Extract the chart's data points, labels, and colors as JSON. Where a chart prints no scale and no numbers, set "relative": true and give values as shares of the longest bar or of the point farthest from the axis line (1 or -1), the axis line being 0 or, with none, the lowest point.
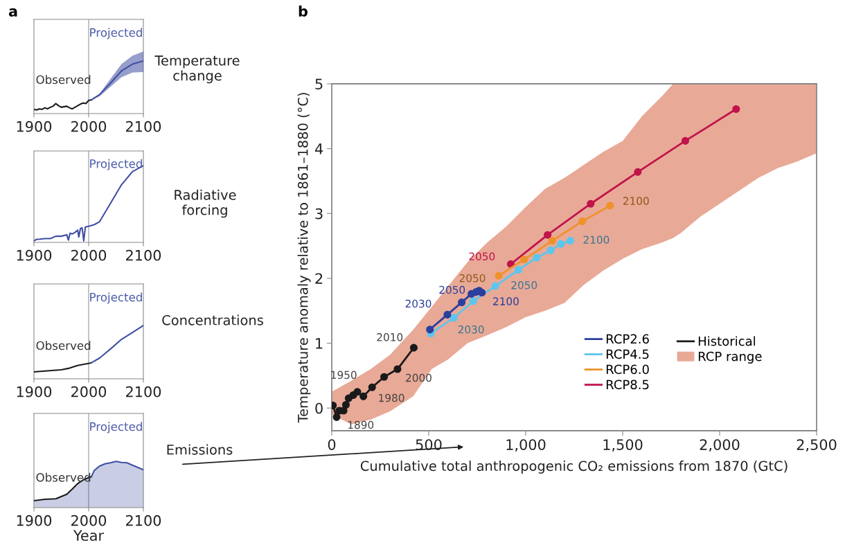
{
  "chart_data": [
    {
      "type": "line",
      "relative": true,
      "xlim": [
        1900,
        2100
      ],
      "xticks": [
        1900,
        2000,
        2100
      ],
      "annotations": [
        "a",
        "Temperature\nchange",
        "Observed",
        "Projected"
      ],
      "ref_lines": [
        {
          "axis": "x",
          "value": 2000,
          "color": "#aaaaaa"
        }
      ],
      "series": [
        {
          "color": "#1a1a1a",
          "x": [
            1900,
            1905,
            1910,
            1915,
            1920,
            1925,
            1930,
            1935,
            1940,
            1945,
            1950,
            1955,
            1960,
            1965,
            1970,
            1975,
            1980,
            1985,
            1990,
            1995,
            2000,
            2005
          ],
          "values": [
            0.08,
            0.07,
            0.09,
            0.08,
            0.11,
            0.09,
            0.12,
            0.14,
            0.19,
            0.15,
            0.12,
            0.13,
            0.14,
            0.11,
            0.09,
            0.12,
            0.15,
            0.18,
            0.2,
            0.19,
            0.25,
            0.26
          ]
        },
        {
          "color": "#3f4fa3",
          "x": [
            2005,
            2020,
            2040,
            2060,
            2080,
            2100
          ],
          "values": [
            0.26,
            0.36,
            0.58,
            0.81,
            0.94,
            1.0
          ],
          "lower": [
            0.26,
            0.33,
            0.51,
            0.69,
            0.78,
            0.79
          ],
          "upper": [
            0.26,
            0.38,
            0.66,
            0.94,
            1.1,
            1.18
          ]
        }
      ]
    },
    {
      "type": "line",
      "relative": true,
      "xlim": [
        1900,
        2100
      ],
      "xticks": [
        1900,
        2000,
        2100
      ],
      "annotations": [
        "Radiative\nforcing",
        "Projected"
      ],
      "ref_lines": [
        {
          "axis": "x",
          "value": 2000,
          "color": "#aaaaaa"
        }
      ],
      "series": [
        {
          "color": "#3f4fa3",
          "x": [
            1900,
            1905,
            1910,
            1920,
            1930,
            1940,
            1950,
            1960,
            1963,
            1966,
            1970,
            1975,
            1980,
            1982,
            1985,
            1988,
            1991,
            1994,
            2000,
            2010,
            2020,
            2040,
            2060,
            2080,
            2100
          ],
          "values": [
            0.02,
            0.04,
            0.04,
            0.05,
            0.05,
            0.08,
            0.08,
            0.1,
            0.03,
            0.12,
            0.11,
            0.13,
            0.16,
            0.07,
            0.18,
            0.19,
            0.02,
            0.2,
            0.21,
            0.23,
            0.27,
            0.51,
            0.75,
            0.92,
            1.0
          ]
        }
      ]
    },
    {
      "type": "line",
      "relative": true,
      "xlim": [
        1900,
        2100
      ],
      "xticks": [
        1900,
        2000,
        2100
      ],
      "annotations": [
        "Concentrations",
        "Observed",
        "Projected"
      ],
      "ref_lines": [
        {
          "axis": "x",
          "value": 2000,
          "color": "#aaaaaa"
        }
      ],
      "series": [
        {
          "color": "#1a1a1a",
          "x": [
            1900,
            1925,
            1950,
            1965,
            1980,
            1990,
            2000,
            2005
          ],
          "values": [
            0.13,
            0.15,
            0.17,
            0.2,
            0.25,
            0.27,
            0.29,
            0.3
          ]
        },
        {
          "color": "#3f4fa3",
          "x": [
            2005,
            2020,
            2040,
            2060,
            2080,
            2100
          ],
          "values": [
            0.3,
            0.39,
            0.56,
            0.74,
            0.87,
            1.0
          ]
        }
      ]
    },
    {
      "type": "line",
      "relative": true,
      "xlim": [
        1900,
        2100
      ],
      "xticks": [
        1900,
        2000,
        2100
      ],
      "xlabel": "Year",
      "annotations": [
        "Emissions",
        "Observed",
        "Projected"
      ],
      "ref_lines": [
        {
          "axis": "x",
          "value": 2000,
          "color": "#aaaaaa"
        }
      ],
      "series": [
        {
          "type": "area",
          "color": "#1a1a1a",
          "x": [
            1900,
            1920,
            1940,
            1950,
            1960,
            1970,
            1980,
            1990,
            2000,
            2005
          ],
          "values": [
            0.15,
            0.18,
            0.19,
            0.24,
            0.29,
            0.4,
            0.52,
            0.6,
            0.65,
            0.67
          ]
        },
        {
          "type": "area",
          "color": "#3f4fa3",
          "x": [
            2005,
            2010,
            2020,
            2030,
            2040,
            2050,
            2060,
            2070,
            2080,
            2090,
            2100
          ],
          "values": [
            0.67,
            0.8,
            0.9,
            0.95,
            0.97,
            1.0,
            0.98,
            0.97,
            0.92,
            0.87,
            0.82
          ]
        }
      ]
    },
    {
      "type": "line",
      "xlabel": "Cumulative total anthropogenic CO₂ emissions from 1870 (GtC)",
      "ylabel": "Temperature anomaly relative to 1861–1880 (°C)",
      "xlim": [
        0,
        2500
      ],
      "ylim": [
        -0.35,
        5
      ],
      "xticks": [
        0,
        500,
        {
          "value": 1000,
          "label": "1,000"
        },
        {
          "value": 1500,
          "label": "1,500"
        },
        {
          "value": 2000,
          "label": "2,000"
        },
        {
          "value": 2500,
          "label": "2,500"
        }
      ],
      "yticks": [
        0,
        1,
        2,
        3,
        4,
        5
      ],
      "marker": "circle",
      "legend": "bottom right",
      "annotations": [
        "b",
        "2050",
        {
          "text": "2030",
          "x": 506,
          "y": 1.21
        },
        {
          "text": "2050",
          "x": 670,
          "y": 1.63
        },
        {
          "text": "2100",
          "x": 774,
          "y": 1.78
        },
        {
          "text": "2030",
          "x": 629,
          "y": 1.39
        },
        {
          "text": "2050",
          "x": 843,
          "y": 1.88
        },
        {
          "text": "2100",
          "x": 1230,
          "y": 2.58
        },
        {
          "text": "2100",
          "x": 1435,
          "y": 3.12
        },
        {
          "text": "2050",
          "x": 923,
          "y": 2.22
        },
        {
          "text": "1890",
          "x": 25,
          "y": -0.14
        },
        {
          "text": "1950",
          "x": 111,
          "y": 0.2
        },
        {
          "text": "1980",
          "x": 208,
          "y": 0.32
        },
        {
          "text": "2000",
          "x": 339,
          "y": 0.6
        },
        {
          "text": "2010",
          "x": 423,
          "y": 0.93
        }
      ],
      "series": [
        {
          "name": "RCP2.6",
          "color": "#2b3f9e",
          "x": [
            506,
            596,
            670,
            720,
            744,
            760,
            774
          ],
          "values": [
            1.21,
            1.44,
            1.63,
            1.76,
            1.79,
            1.81,
            1.78
          ]
        },
        {
          "name": "RCP4.5",
          "color": "#5cc6ee",
          "x": [
            511,
            629,
            730,
            843,
            962,
            1057,
            1129,
            1182,
            1230
          ],
          "values": [
            1.15,
            1.39,
            1.65,
            1.88,
            2.13,
            2.32,
            2.43,
            2.53,
            2.58
          ]
        },
        {
          "name": "RCP6.0",
          "color": "#ef922c",
          "x": [
            861,
            992,
            1137,
            1292,
            1435
          ],
          "values": [
            2.04,
            2.29,
            2.58,
            2.88,
            3.12
          ]
        },
        {
          "name": "RCP8.5",
          "color": "#c0144b",
          "x": [
            923,
            1113,
            1335,
            1578,
            1823,
            2085
          ],
          "values": [
            2.22,
            2.67,
            3.15,
            3.64,
            4.12,
            4.61
          ]
        },
        {
          "name": "Historical",
          "color": "#1a1a1a",
          "x": [
            6,
            25,
            39,
            61,
            73,
            87,
            111,
            132,
            163,
            208,
            270,
            339,
            423
          ],
          "values": [
            0.04,
            -0.14,
            -0.04,
            -0.04,
            0.05,
            0.15,
            0.2,
            0.25,
            0.18,
            0.32,
            0.48,
            0.6,
            0.93
          ]
        },
        {
          "name": "RCP range",
          "type": "area",
          "color": "#e9a997",
          "x": [
            0,
            100,
            200,
            300,
            420,
            515,
            600,
            700,
            800,
            900,
            1000,
            1100,
            1200,
            1300,
            1400,
            1500,
            1600,
            1700,
            1760,
            1800,
            1900,
            2000,
            2100,
            2200,
            2300,
            2400,
            2500
          ],
          "values": [
            null,
            null,
            null,
            null,
            null,
            null,
            null,
            null,
            null,
            null,
            null,
            null,
            null,
            null,
            null,
            null,
            null,
            null,
            null,
            null,
            null,
            null,
            null,
            null,
            null,
            null,
            null
          ],
          "lower": [
            -0.1,
            -0.25,
            -0.18,
            -0.05,
            0.18,
            0.6,
            0.75,
            1.0,
            1.12,
            1.25,
            1.4,
            1.5,
            1.62,
            1.9,
            2.12,
            2.3,
            2.45,
            2.55,
            2.62,
            2.7,
            2.95,
            3.15,
            3.35,
            3.55,
            3.7,
            3.8,
            3.93
          ],
          "upper": [
            0.25,
            0.42,
            0.6,
            0.82,
            1.21,
            1.56,
            1.88,
            2.25,
            2.55,
            2.8,
            3.1,
            3.38,
            3.55,
            3.75,
            3.95,
            4.12,
            4.5,
            4.8,
            5.0,
            5.0,
            5.0,
            5.0,
            5.0,
            5.0,
            5.0,
            5.0,
            5.0
          ]
        }
      ]
    }
  ]
}
